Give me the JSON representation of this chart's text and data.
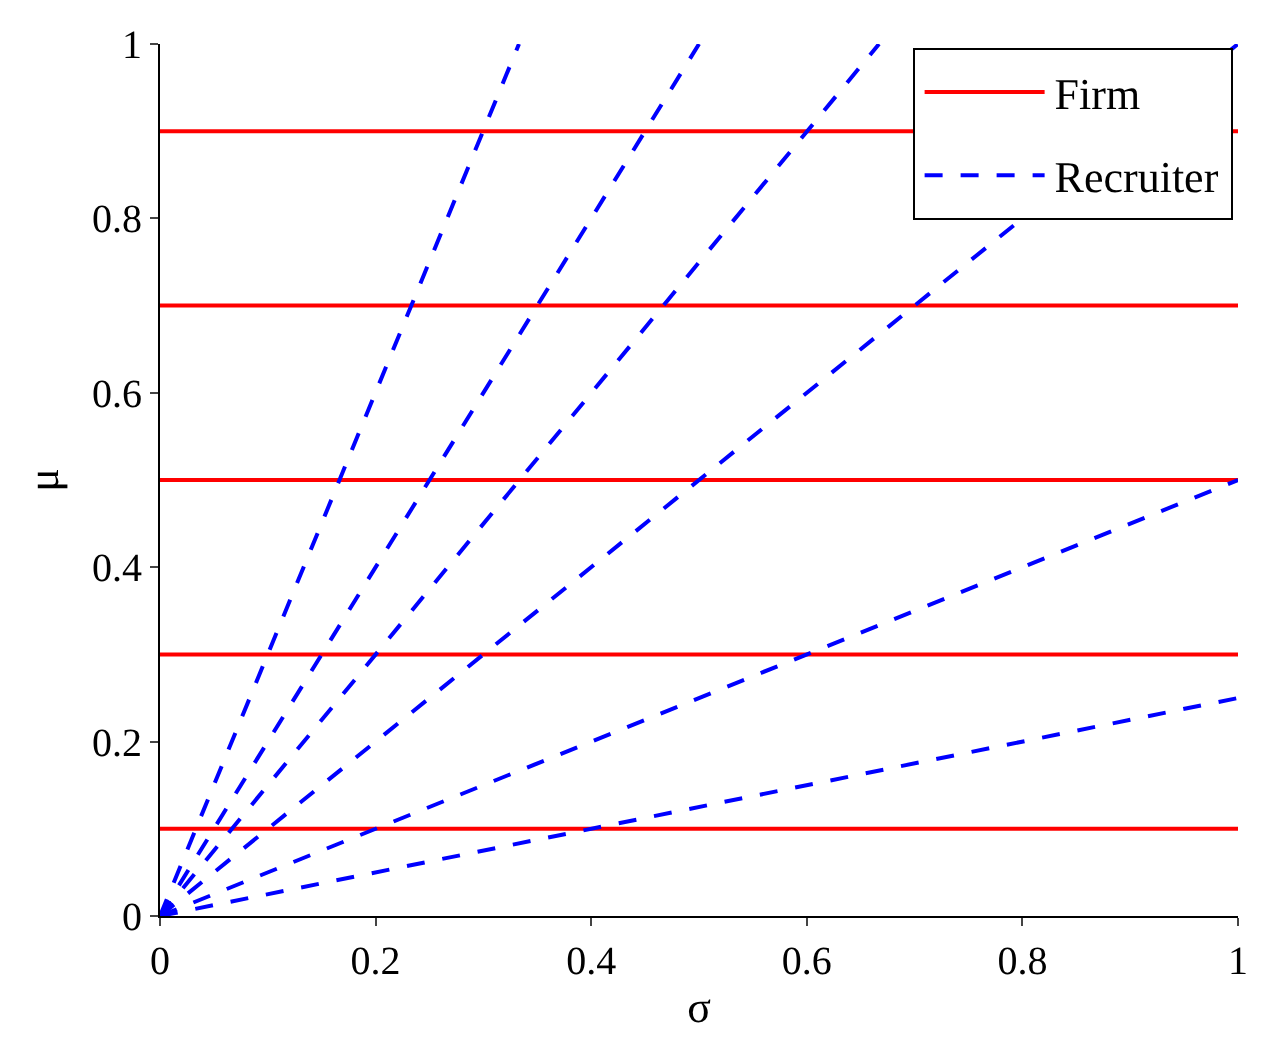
{
  "chart_data": {
    "type": "line",
    "xlabel": "σ",
    "ylabel": "μ",
    "xlim": [
      0,
      1
    ],
    "ylim": [
      0,
      1
    ],
    "xticks": [
      0,
      0.2,
      0.4,
      0.6,
      0.8,
      1
    ],
    "yticks": [
      0,
      0.2,
      0.4,
      0.6,
      0.8,
      1
    ],
    "legend": "top right",
    "marker": "none",
    "series": [
      {
        "name": "Firm",
        "color": "#ff0000",
        "line_style": "solid",
        "x": [
          0,
          1
        ],
        "values": [
          0.9,
          0.9
        ]
      },
      {
        "color": "#ff0000",
        "line_style": "solid",
        "x": [
          0,
          1
        ],
        "values": [
          0.7,
          0.7
        ]
      },
      {
        "color": "#ff0000",
        "line_style": "solid",
        "x": [
          0,
          1
        ],
        "values": [
          0.5,
          0.5
        ]
      },
      {
        "color": "#ff0000",
        "line_style": "solid",
        "x": [
          0,
          1
        ],
        "values": [
          0.3,
          0.3
        ]
      },
      {
        "color": "#ff0000",
        "line_style": "solid",
        "x": [
          0,
          1
        ],
        "values": [
          0.1,
          0.1
        ]
      },
      {
        "name": "Recruiter",
        "color": "#0000ff",
        "line_style": "dashed",
        "x": [
          0,
          0.333
        ],
        "values": [
          0,
          1
        ]
      },
      {
        "color": "#0000ff",
        "line_style": "dashed",
        "x": [
          0,
          0.5
        ],
        "values": [
          0,
          1
        ]
      },
      {
        "color": "#0000ff",
        "line_style": "dashed",
        "x": [
          0,
          0.667
        ],
        "values": [
          0,
          1
        ]
      },
      {
        "color": "#0000ff",
        "line_style": "dashed",
        "x": [
          0,
          1
        ],
        "values": [
          0,
          1
        ]
      },
      {
        "color": "#0000ff",
        "line_style": "dashed",
        "x": [
          0,
          1
        ],
        "values": [
          0,
          0.5
        ]
      },
      {
        "color": "#0000ff",
        "line_style": "dashed",
        "x": [
          0,
          1
        ],
        "values": [
          0,
          0.25
        ]
      }
    ]
  }
}
